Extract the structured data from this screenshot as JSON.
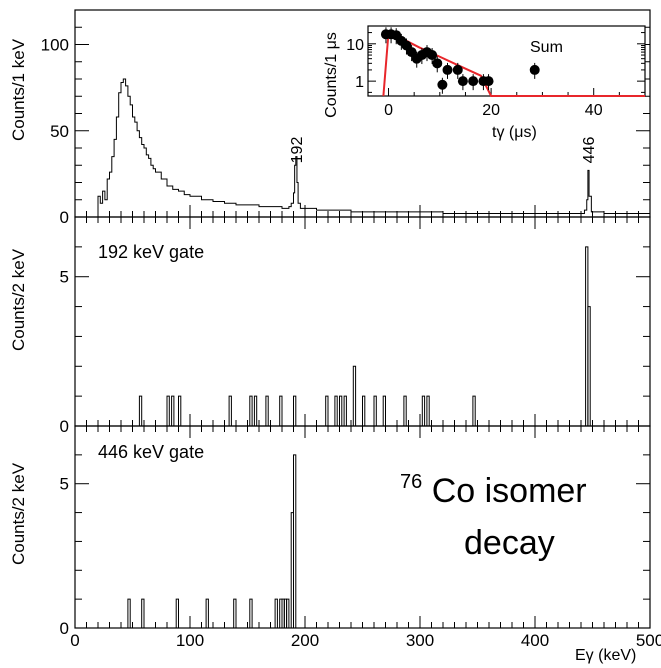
{
  "chart_data": [
    {
      "type": "histogram",
      "panel": "top",
      "ylabel": "Counts/1 keV",
      "xlim": [
        0,
        500
      ],
      "ylim": [
        0,
        120
      ],
      "yticks": [
        "0",
        "50",
        "100"
      ],
      "peak_labels": [
        {
          "text": "192",
          "x": 192
        },
        {
          "text": "446",
          "x": 446
        }
      ],
      "x": [
        20,
        22,
        24,
        26,
        28,
        30,
        32,
        34,
        36,
        38,
        40,
        42,
        44,
        46,
        48,
        50,
        52,
        54,
        56,
        58,
        60,
        62,
        64,
        66,
        68,
        70,
        75,
        80,
        85,
        90,
        95,
        100,
        110,
        120,
        130,
        140,
        150,
        160,
        170,
        180,
        186,
        188,
        190,
        191,
        192,
        193,
        194,
        196,
        200,
        210,
        220,
        240,
        260,
        280,
        300,
        320,
        340,
        360,
        380,
        400,
        420,
        440,
        443,
        445,
        446,
        447,
        449,
        460,
        480,
        500
      ],
      "values": [
        12,
        8,
        15,
        10,
        22,
        26,
        35,
        45,
        58,
        72,
        78,
        80,
        76,
        70,
        65,
        58,
        55,
        50,
        46,
        42,
        40,
        36,
        34,
        30,
        28,
        26,
        22,
        18,
        16,
        15,
        13,
        12,
        10,
        9,
        8,
        7,
        7,
        6,
        6,
        5,
        6,
        8,
        14,
        30,
        35,
        20,
        8,
        5,
        5,
        4,
        4,
        3,
        3,
        3,
        3,
        2,
        2,
        2,
        2,
        2,
        2,
        2,
        4,
        10,
        27,
        12,
        3,
        2,
        2,
        2
      ]
    },
    {
      "type": "scatter",
      "panel": "inset",
      "title": "Sum",
      "xlabel": "tγ (μs)",
      "ylabel": "Counts/1 μs",
      "xlim": [
        -4,
        50
      ],
      "ylim_log": [
        0.4,
        30
      ],
      "xticks": [
        "0",
        "20",
        "40"
      ],
      "yticks": [
        "1",
        "10"
      ],
      "points": [
        {
          "x": -0.5,
          "y": 18
        },
        {
          "x": 0.5,
          "y": 18
        },
        {
          "x": 1.5,
          "y": 17
        },
        {
          "x": 2.5,
          "y": 12
        },
        {
          "x": 3.5,
          "y": 9
        },
        {
          "x": 4.5,
          "y": 6
        },
        {
          "x": 5.5,
          "y": 4
        },
        {
          "x": 6.5,
          "y": 5
        },
        {
          "x": 7.5,
          "y": 6
        },
        {
          "x": 8.5,
          "y": 5
        },
        {
          "x": 9.5,
          "y": 3
        },
        {
          "x": 10.5,
          "y": 0.8
        },
        {
          "x": 11.5,
          "y": 2
        },
        {
          "x": 13.5,
          "y": 2
        },
        {
          "x": 14.5,
          "y": 1
        },
        {
          "x": 16.5,
          "y": 1
        },
        {
          "x": 18.5,
          "y": 1
        },
        {
          "x": 19.5,
          "y": 1
        },
        {
          "x": 28.5,
          "y": 2
        }
      ],
      "fit_curve": {
        "color": "#e8262b",
        "x": [
          -1,
          0,
          1,
          3,
          6,
          10,
          14,
          18,
          20,
          50
        ],
        "y": [
          0.4,
          20,
          18,
          13,
          8,
          4.5,
          2.5,
          1.4,
          0.4,
          0.4
        ]
      }
    },
    {
      "type": "histogram",
      "panel": "middle",
      "annotation": "192 keV gate",
      "ylabel": "Counts/2 keV",
      "xlim": [
        0,
        500
      ],
      "ylim": [
        0,
        7
      ],
      "yticks": [
        "0",
        "5"
      ],
      "bins": [
        {
          "x": 56,
          "y": 1
        },
        {
          "x": 80,
          "y": 1
        },
        {
          "x": 84,
          "y": 1
        },
        {
          "x": 90,
          "y": 1
        },
        {
          "x": 134,
          "y": 1
        },
        {
          "x": 152,
          "y": 1
        },
        {
          "x": 156,
          "y": 1
        },
        {
          "x": 166,
          "y": 1
        },
        {
          "x": 178,
          "y": 1
        },
        {
          "x": 190,
          "y": 1
        },
        {
          "x": 218,
          "y": 1
        },
        {
          "x": 226,
          "y": 1
        },
        {
          "x": 230,
          "y": 1
        },
        {
          "x": 234,
          "y": 1
        },
        {
          "x": 242,
          "y": 2
        },
        {
          "x": 250,
          "y": 1
        },
        {
          "x": 260,
          "y": 1
        },
        {
          "x": 268,
          "y": 1
        },
        {
          "x": 286,
          "y": 1
        },
        {
          "x": 302,
          "y": 1
        },
        {
          "x": 306,
          "y": 1
        },
        {
          "x": 346,
          "y": 1
        },
        {
          "x": 444,
          "y": 6
        },
        {
          "x": 446,
          "y": 4
        }
      ]
    },
    {
      "type": "histogram",
      "panel": "bottom",
      "annotation": "446 keV gate",
      "ylabel": "Counts/2 keV",
      "xlabel": "Eγ (keV)",
      "xlim": [
        0,
        500
      ],
      "ylim": [
        0,
        7
      ],
      "yticks": [
        "0",
        "5"
      ],
      "xticks": [
        "0",
        "100",
        "200",
        "300",
        "400",
        "500"
      ],
      "bins": [
        {
          "x": 46,
          "y": 1
        },
        {
          "x": 58,
          "y": 1
        },
        {
          "x": 88,
          "y": 1
        },
        {
          "x": 114,
          "y": 1
        },
        {
          "x": 138,
          "y": 1
        },
        {
          "x": 152,
          "y": 1
        },
        {
          "x": 174,
          "y": 1
        },
        {
          "x": 178,
          "y": 1
        },
        {
          "x": 180,
          "y": 1
        },
        {
          "x": 182,
          "y": 1
        },
        {
          "x": 184,
          "y": 1
        },
        {
          "x": 188,
          "y": 4
        },
        {
          "x": 190,
          "y": 6
        }
      ]
    }
  ],
  "label": {
    "sup": "76",
    "element": "Co isomer",
    "line2": "decay"
  }
}
